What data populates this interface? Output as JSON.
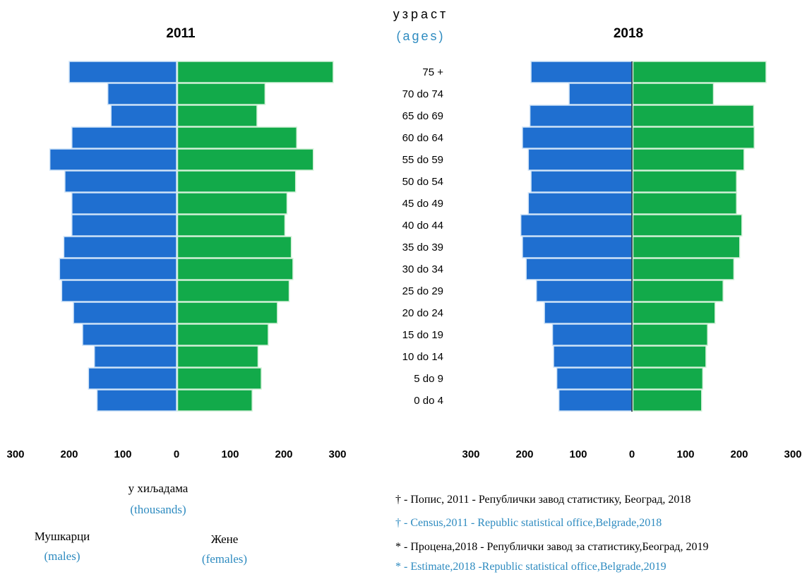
{
  "colors": {
    "males": "#1F6FD0",
    "females": "#12AA4A",
    "accent": "#2E8BC0"
  },
  "axis_header": {
    "title": "узраст",
    "subtitle": "(ages)"
  },
  "units": {
    "label": "у хиљадама",
    "label_en": "(thousands)"
  },
  "legend": {
    "males": "Мушкарци",
    "males_en": "(males)",
    "females": "Жене",
    "females_en": "(females)"
  },
  "footnotes": [
    "† - Попис, 2011 - Републички завод статистику, Београд, 2018",
    "† - Census,2011 - Republic statistical office,Belgrade,2018",
    "* - Процена,2018 - Републички завод за статистику,Београд, 2019",
    "* - Estimate,2018 -Republic statistical office,Belgrade,2019"
  ],
  "chart_data": [
    {
      "type": "bar",
      "orientation": "horizontal-pyramid",
      "title": "2011",
      "categories": [
        "75 +",
        "70 do 74",
        "65 do 69",
        "60 do 64",
        "55 do 59",
        "50 do 54",
        "45 do 49",
        "40 do 44",
        "35 do 39",
        "30 do 34",
        "25 do 29",
        "20 do 24",
        "15 do 19",
        "10 do 14",
        "5 do 9",
        "0 do 4"
      ],
      "series": [
        {
          "name": "Мушкарци",
          "values": [
            200,
            128,
            122,
            195,
            236,
            208,
            195,
            195,
            210,
            218,
            214,
            192,
            175,
            153,
            164,
            148
          ]
        },
        {
          "name": "Жене",
          "values": [
            290,
            163,
            148,
            222,
            253,
            220,
            204,
            200,
            212,
            215,
            208,
            186,
            169,
            150,
            156,
            139
          ]
        }
      ],
      "x_ticks": [
        300,
        200,
        100,
        0,
        100,
        200,
        300
      ],
      "xlim": [
        -300,
        300
      ]
    },
    {
      "type": "bar",
      "orientation": "horizontal-pyramid",
      "title": "2018",
      "categories": [
        "75 +",
        "70 do 74",
        "65 do 69",
        "60 do 64",
        "55 do 59",
        "50 do 54",
        "45 do 49",
        "40 do 44",
        "35 do 39",
        "30 do 34",
        "25 do 29",
        "20 do 24",
        "15 do 19",
        "10 do 14",
        "5 do 9",
        "0 do 4"
      ],
      "series": [
        {
          "name": "Мушкарци",
          "values": [
            188,
            117,
            190,
            204,
            193,
            188,
            193,
            207,
            204,
            197,
            178,
            163,
            148,
            146,
            140,
            136
          ]
        },
        {
          "name": "Жене",
          "values": [
            248,
            150,
            225,
            226,
            207,
            193,
            193,
            203,
            199,
            188,
            168,
            153,
            139,
            136,
            130,
            128
          ]
        }
      ],
      "x_ticks": [
        300,
        200,
        100,
        0,
        100,
        200,
        300
      ],
      "xlim": [
        -300,
        300
      ]
    }
  ]
}
